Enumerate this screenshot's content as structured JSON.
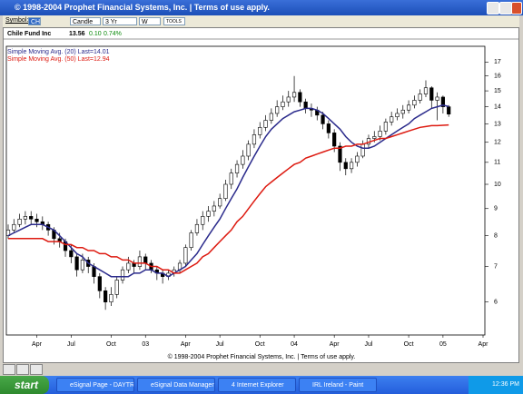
{
  "window": {
    "title": "© 1998-2004 Prophet Financial Systems, Inc. | Terms of use apply."
  },
  "toolbar": {
    "symbol_label": "Symbol:",
    "symbol": "CH",
    "chart_style": "Candle",
    "period": "3 Yr",
    "interval": "W",
    "tools": "TOOLS"
  },
  "chart_data": {
    "type": "candlestick",
    "name": "Chile Fund Inc",
    "last": "13.56",
    "change": "0.10",
    "change_pct": "0.74%",
    "categories": [
      null,
      null,
      null,
      null,
      null,
      "Apr",
      null,
      null,
      null,
      null,
      null,
      "Jul",
      null,
      null,
      null,
      null,
      null,
      null,
      "Oct",
      null,
      null,
      null,
      null,
      null,
      "03",
      null,
      null,
      null,
      null,
      null,
      null,
      "Apr",
      null,
      null,
      null,
      null,
      null,
      "Jul",
      null,
      null,
      null,
      null,
      null,
      null,
      "Oct",
      null,
      null,
      null,
      null,
      null,
      "04",
      null,
      null,
      null,
      null,
      null,
      null,
      "Apr",
      null,
      null,
      null,
      null,
      null,
      "Jul",
      null,
      null,
      null,
      null,
      null,
      null,
      "Oct",
      null,
      null,
      null,
      null,
      null,
      "05",
      null,
      null,
      null,
      null,
      null,
      null,
      "Apr"
    ],
    "open": [
      8.0,
      8.2,
      8.4,
      8.6,
      8.7,
      8.6,
      8.5,
      8.4,
      8.2,
      7.9,
      7.8,
      7.5,
      7.3,
      6.9,
      7.2,
      7.0,
      6.7,
      6.3,
      6.0,
      6.2,
      6.6,
      6.9,
      7.1,
      7.0,
      7.3,
      7.1,
      6.9,
      6.8,
      6.7,
      6.8,
      6.9,
      7.1,
      7.6,
      8.1,
      8.4,
      8.7,
      8.9,
      9.1,
      9.4,
      10.0,
      10.5,
      10.9,
      11.3,
      11.9,
      12.4,
      12.8,
      13.2,
      13.6,
      14.0,
      14.3,
      14.6,
      14.9,
      14.3,
      13.9,
      13.8,
      13.5,
      13.0,
      12.5,
      11.8,
      11.0,
      10.7,
      11.0,
      11.3,
      11.9,
      12.2,
      12.3,
      12.6,
      13.1,
      13.4,
      13.6,
      13.8,
      14.1,
      14.4,
      14.8,
      15.2,
      14.4,
      14.6,
      14.0,
      null,
      null,
      null,
      null,
      null,
      null
    ],
    "high": [
      8.4,
      8.6,
      8.8,
      8.9,
      8.9,
      8.8,
      8.7,
      8.5,
      8.3,
      8.1,
      7.9,
      7.7,
      7.4,
      7.4,
      7.3,
      7.1,
      6.8,
      6.4,
      6.4,
      6.7,
      7.0,
      7.3,
      7.2,
      7.5,
      7.4,
      7.2,
      7.0,
      6.9,
      6.9,
      7.0,
      7.2,
      7.7,
      8.2,
      8.6,
      8.9,
      9.1,
      9.3,
      9.6,
      10.2,
      10.7,
      11.1,
      11.6,
      12.1,
      12.7,
      13.1,
      13.5,
      13.9,
      14.4,
      14.7,
      15.0,
      16.0,
      15.1,
      14.5,
      14.2,
      14.0,
      13.7,
      13.2,
      12.7,
      12.0,
      11.2,
      11.2,
      11.5,
      12.1,
      12.4,
      12.6,
      12.9,
      13.3,
      13.7,
      13.9,
      14.1,
      14.4,
      14.7,
      15.1,
      15.7,
      15.3,
      14.9,
      14.7,
      14.1,
      null,
      null,
      null,
      null,
      null,
      null
    ],
    "low": [
      7.9,
      8.1,
      8.3,
      8.4,
      8.4,
      8.3,
      8.2,
      8.0,
      7.7,
      7.6,
      7.3,
      7.1,
      6.7,
      6.8,
      6.8,
      6.5,
      6.1,
      5.8,
      5.9,
      6.1,
      6.5,
      6.8,
      6.8,
      6.9,
      6.9,
      6.8,
      6.6,
      6.5,
      6.6,
      6.7,
      6.8,
      7.0,
      7.5,
      8.0,
      8.2,
      8.5,
      8.7,
      9.0,
      9.3,
      9.8,
      10.3,
      10.7,
      11.1,
      11.7,
      12.2,
      12.6,
      13.0,
      13.4,
      13.8,
      14.0,
      14.3,
      14.0,
      13.6,
      13.4,
      13.2,
      12.7,
      12.2,
      11.5,
      10.6,
      10.4,
      10.5,
      10.8,
      11.2,
      11.7,
      12.0,
      12.1,
      12.4,
      12.9,
      13.2,
      13.3,
      13.6,
      13.9,
      14.2,
      14.6,
      13.9,
      13.2,
      13.6,
      13.4,
      null,
      null,
      null,
      null,
      null,
      null
    ],
    "close": [
      8.2,
      8.4,
      8.6,
      8.7,
      8.6,
      8.5,
      8.4,
      8.2,
      7.9,
      7.8,
      7.5,
      7.3,
      6.9,
      7.2,
      7.0,
      6.7,
      6.3,
      6.0,
      6.2,
      6.6,
      6.9,
      7.1,
      7.0,
      7.3,
      7.1,
      6.9,
      6.8,
      6.7,
      6.8,
      6.9,
      7.1,
      7.6,
      8.1,
      8.4,
      8.7,
      8.9,
      9.1,
      9.4,
      10.0,
      10.5,
      10.9,
      11.3,
      11.9,
      12.4,
      12.8,
      13.2,
      13.6,
      14.0,
      14.3,
      14.6,
      14.9,
      14.3,
      13.9,
      13.8,
      13.5,
      13.0,
      12.5,
      11.8,
      11.0,
      10.7,
      11.0,
      11.3,
      11.9,
      12.2,
      12.3,
      12.6,
      13.1,
      13.4,
      13.6,
      13.8,
      14.1,
      14.4,
      14.8,
      15.2,
      14.4,
      14.6,
      14.0,
      13.56,
      null,
      null,
      null,
      null,
      null,
      null
    ],
    "candle_color": "#000000",
    "up_fill": "#ffffff",
    "down_fill": "#000000",
    "series": [
      {
        "name": "Simple Moving Avg. (20) Last=14.01",
        "color": "#2b2b8c",
        "values": [
          8.0,
          8.1,
          8.2,
          8.3,
          8.4,
          8.4,
          8.4,
          8.3,
          8.2,
          8.0,
          7.8,
          7.6,
          7.4,
          7.3,
          7.1,
          7.0,
          6.9,
          6.8,
          6.7,
          6.7,
          6.7,
          6.7,
          6.8,
          6.8,
          6.9,
          6.9,
          6.8,
          6.8,
          6.7,
          6.8,
          6.9,
          7.0,
          7.2,
          7.4,
          7.7,
          8.0,
          8.3,
          8.6,
          9.0,
          9.4,
          9.8,
          10.3,
          10.8,
          11.3,
          11.8,
          12.3,
          12.7,
          13.0,
          13.3,
          13.5,
          13.7,
          13.8,
          13.9,
          13.9,
          13.8,
          13.6,
          13.3,
          13.0,
          12.7,
          12.3,
          12.0,
          11.8,
          11.7,
          11.7,
          11.8,
          12.0,
          12.2,
          12.4,
          12.6,
          12.8,
          13.0,
          13.3,
          13.5,
          13.7,
          13.9,
          14.0,
          14.1,
          14.01,
          null,
          null,
          null,
          null,
          null,
          null
        ]
      },
      {
        "name": "Simple Moving Avg. (50) Last=12.94",
        "color": "#dd1a10",
        "values": [
          7.9,
          7.9,
          7.9,
          7.9,
          7.9,
          7.9,
          7.9,
          7.8,
          7.8,
          7.8,
          7.7,
          7.7,
          7.6,
          7.6,
          7.5,
          7.5,
          7.4,
          7.4,
          7.3,
          7.3,
          7.2,
          7.2,
          7.1,
          7.1,
          7.1,
          7.0,
          7.0,
          6.9,
          6.9,
          6.8,
          6.8,
          6.9,
          7.0,
          7.1,
          7.3,
          7.4,
          7.6,
          7.8,
          8.0,
          8.2,
          8.5,
          8.7,
          9.0,
          9.3,
          9.6,
          9.9,
          10.1,
          10.3,
          10.5,
          10.7,
          10.9,
          11.0,
          11.2,
          11.3,
          11.4,
          11.5,
          11.6,
          11.7,
          11.7,
          11.8,
          11.8,
          11.9,
          11.9,
          12.0,
          12.1,
          12.2,
          12.2,
          12.3,
          12.4,
          12.5,
          12.6,
          12.7,
          12.8,
          12.85,
          12.9,
          12.9,
          12.92,
          12.94,
          null,
          null,
          null,
          null,
          null,
          null
        ]
      }
    ],
    "ylim": [
      5.2,
      18.2
    ],
    "yticks": [
      6,
      7,
      8,
      9,
      10,
      11,
      12,
      13,
      14,
      15,
      16,
      17
    ],
    "log_scale": true,
    "footer": "© 1998-2004 Prophet Financial Systems, Inc. | Terms of use apply."
  },
  "taskbar": {
    "start": "start",
    "tasks": [
      "eSignal Page - DAYTR...",
      "eSignal Data Manager",
      "4 Internet Explorer",
      "IRL Ireland - Paint"
    ],
    "clock": "12:36 PM"
  }
}
